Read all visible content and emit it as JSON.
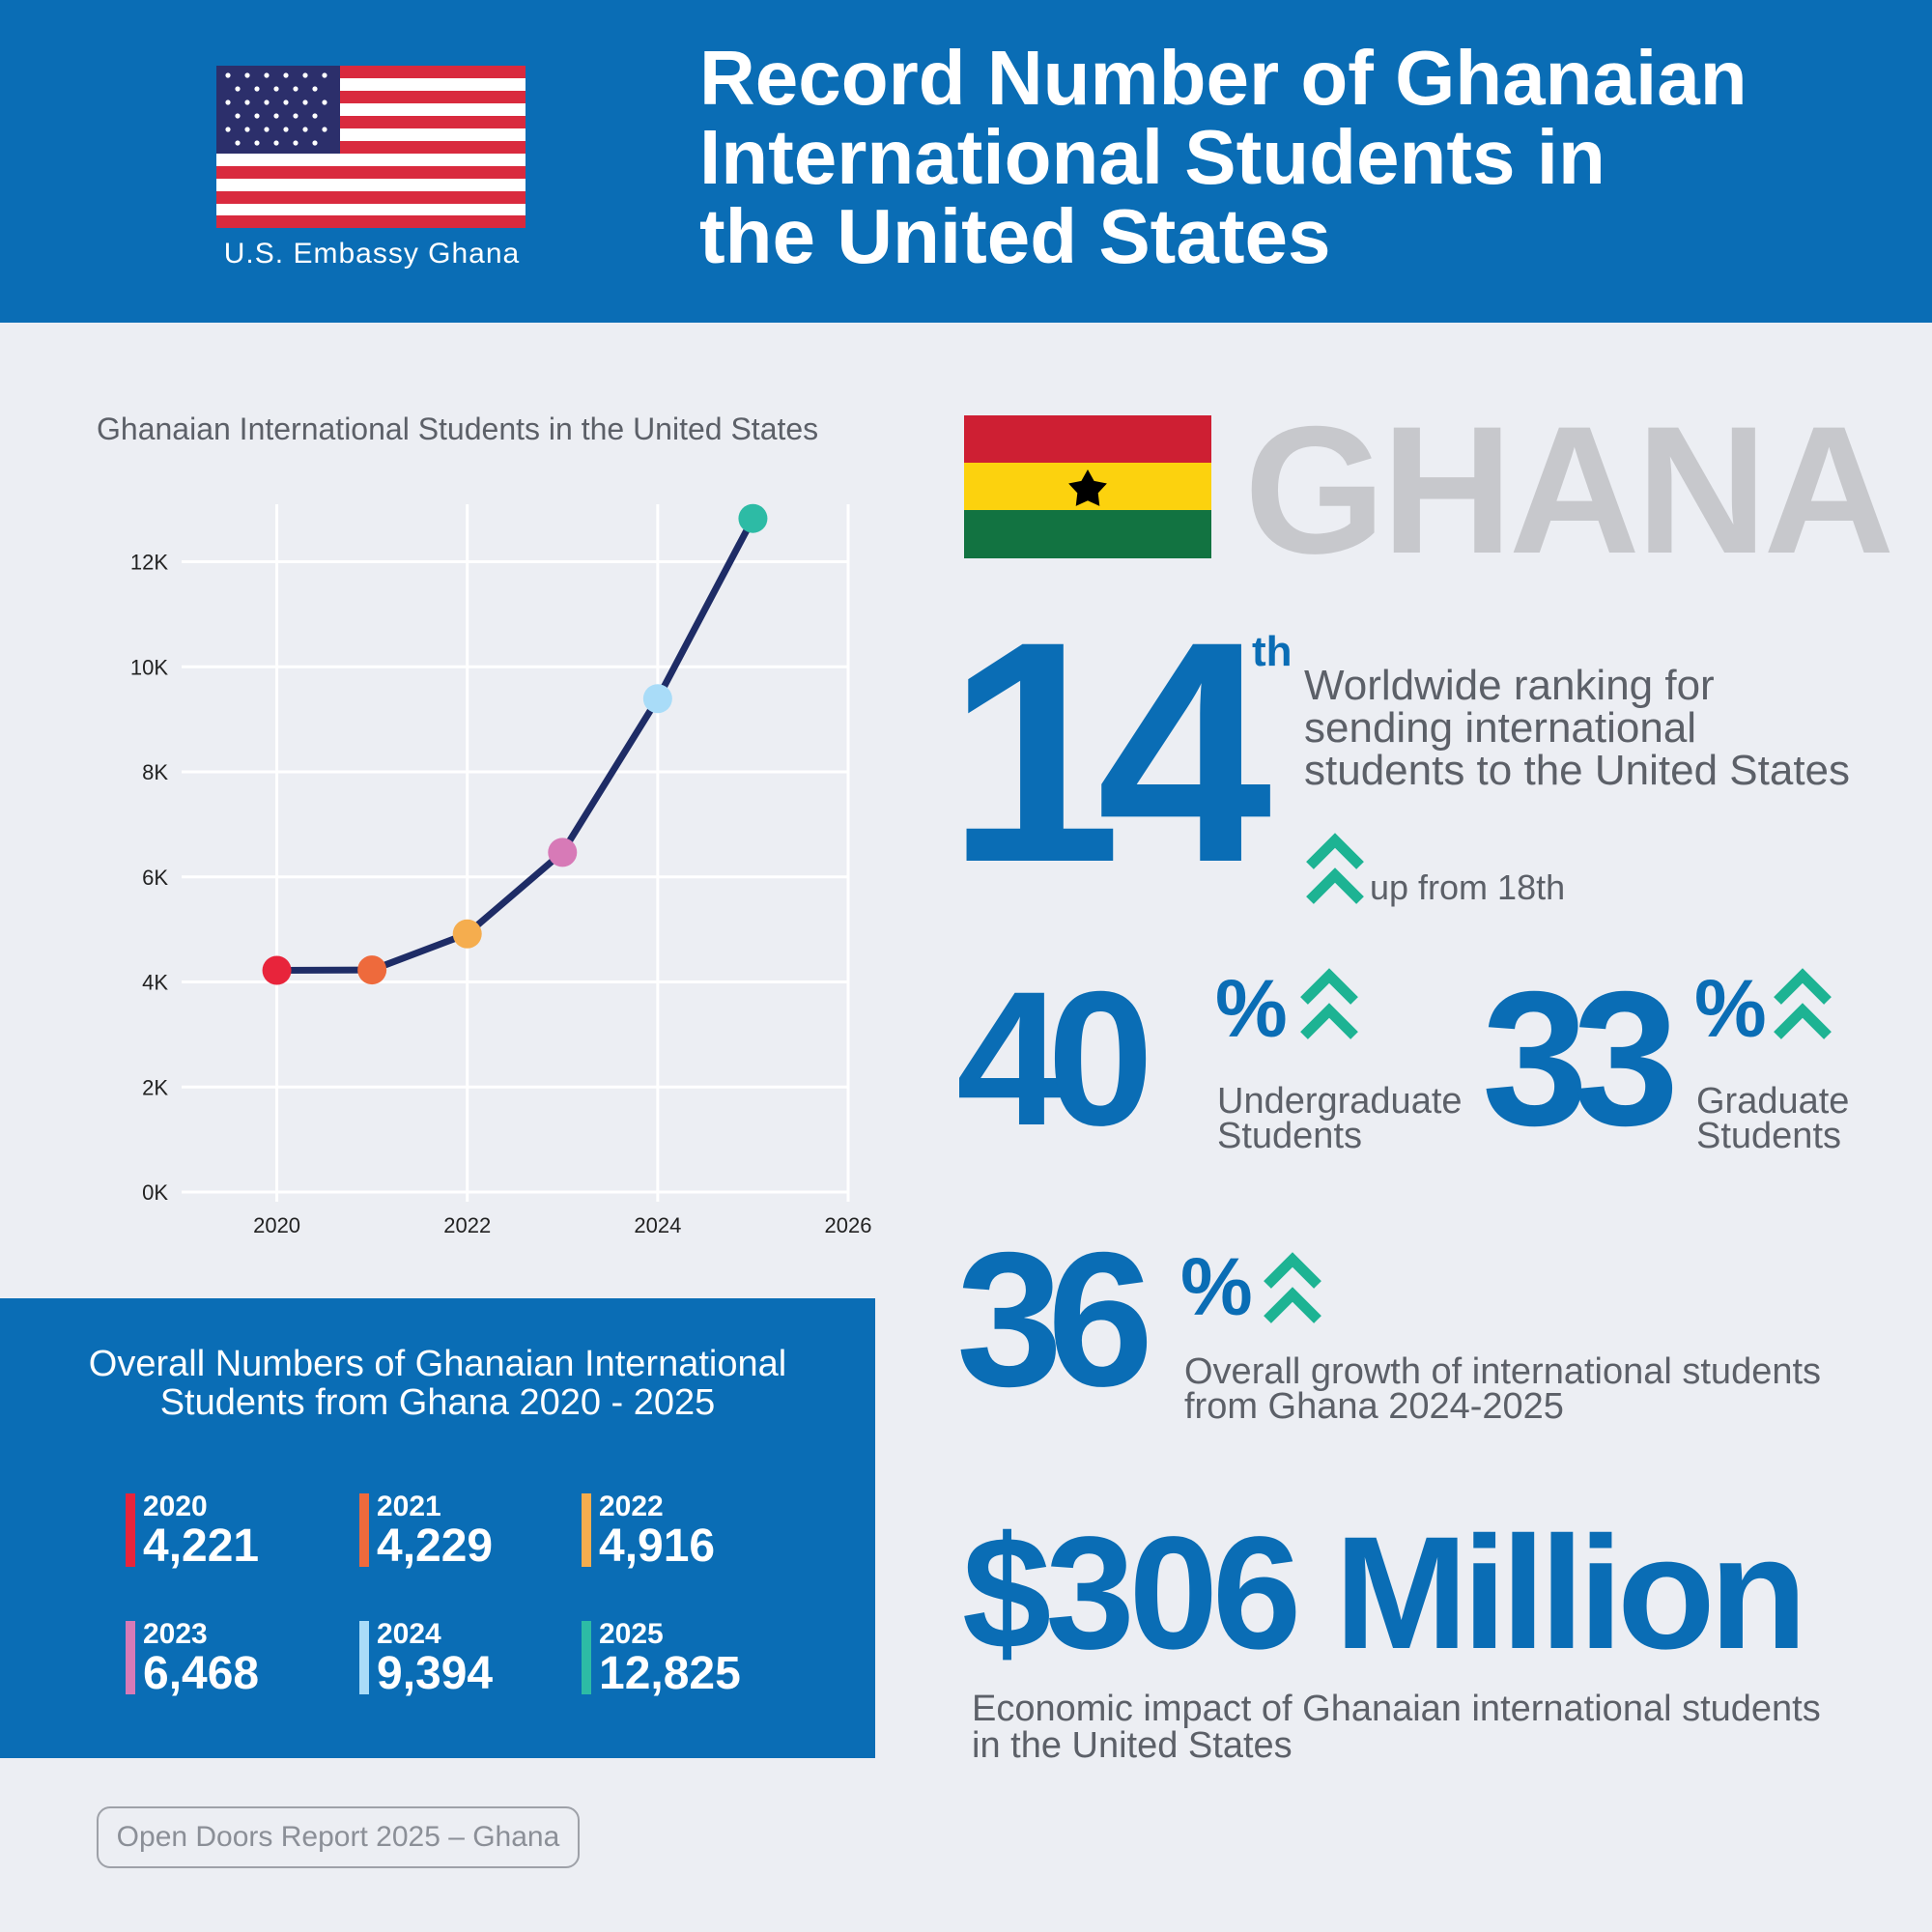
{
  "header": {
    "embassy": "U.S. Embassy Ghana",
    "title_lines": [
      "Record Number of Ghanaian",
      "International Students in",
      "the United States"
    ]
  },
  "chart_data": {
    "type": "line",
    "title": "Ghanaian International Students in the United States",
    "x": [
      2020,
      2021,
      2022,
      2023,
      2024,
      2025
    ],
    "values": [
      4221,
      4229,
      4916,
      6468,
      9394,
      12825
    ],
    "point_colors": [
      "#e8243b",
      "#ee6a3c",
      "#f5ad4e",
      "#d77ab7",
      "#a9dcf8",
      "#2dbba5"
    ],
    "line_color": "#1e2c66",
    "xlabel": "",
    "ylabel": "",
    "xlim": [
      2019,
      2026
    ],
    "ylim": [
      0,
      13500
    ],
    "x_ticks": [
      2020,
      2022,
      2024,
      2026
    ],
    "y_ticks": [
      0,
      2000,
      4000,
      6000,
      8000,
      10000,
      12000
    ],
    "y_tick_labels": [
      "0K",
      "2K",
      "4K",
      "6K",
      "8K",
      "10K",
      "12K"
    ],
    "grid": true
  },
  "ghana": {
    "word": "GHANA",
    "rank": "14",
    "rank_suffix": "th",
    "rank_desc": [
      "Worldwide ranking for",
      "sending international",
      "students to the United States"
    ],
    "rank_prev": "up from 18th"
  },
  "stats": {
    "undergrad": {
      "value": "40",
      "sign": "%",
      "desc": [
        "Undergraduate",
        "Students"
      ]
    },
    "graduate": {
      "value": "33",
      "sign": "%",
      "desc": [
        "Graduate",
        "Students"
      ]
    },
    "overall": {
      "value": "36",
      "sign": "%",
      "desc": [
        "Overall growth of international students",
        "from Ghana 2024-2025"
      ]
    }
  },
  "economic": {
    "value": "$306 Million",
    "desc": [
      "Economic impact of Ghanaian international students",
      "in the United States"
    ]
  },
  "overall_numbers": {
    "title_lines": [
      "Overall Numbers of Ghanaian International",
      "Students from Ghana 2020 - 2025"
    ],
    "items": [
      {
        "year": "2020",
        "value": "4,221",
        "color": "#e8243b"
      },
      {
        "year": "2021",
        "value": "4,229",
        "color": "#ee6a3c"
      },
      {
        "year": "2022",
        "value": "4,916",
        "color": "#f5ad4e"
      },
      {
        "year": "2023",
        "value": "6,468",
        "color": "#d77ab7"
      },
      {
        "year": "2024",
        "value": "9,394",
        "color": "#a9dcf8"
      },
      {
        "year": "2025",
        "value": "12,825",
        "color": "#2dbba5"
      }
    ]
  },
  "colors": {
    "brand_blue": "#0a6db5",
    "accent_green": "#1db393",
    "text_gray": "#5c6068"
  },
  "source": "Open Doors Report 2025 – Ghana"
}
